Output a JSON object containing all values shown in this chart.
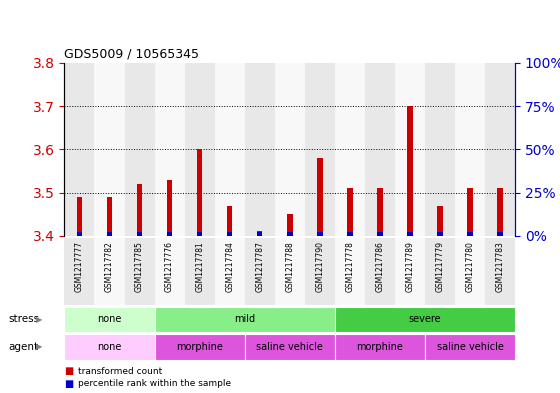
{
  "title": "GDS5009 / 10565345",
  "samples": [
    "GSM1217777",
    "GSM1217782",
    "GSM1217785",
    "GSM1217776",
    "GSM1217781",
    "GSM1217784",
    "GSM1217787",
    "GSM1217788",
    "GSM1217790",
    "GSM1217778",
    "GSM1217786",
    "GSM1217789",
    "GSM1217779",
    "GSM1217780",
    "GSM1217783"
  ],
  "transformed_counts": [
    3.49,
    3.49,
    3.52,
    3.53,
    3.6,
    3.47,
    3.41,
    3.45,
    3.58,
    3.51,
    3.51,
    3.7,
    3.47,
    3.51,
    3.51
  ],
  "baseline": 3.4,
  "percentile_values": [
    0.01,
    0.01,
    0.01,
    0.01,
    0.01,
    0.01,
    0.01,
    0.01,
    0.01,
    0.01,
    0.01,
    0.01,
    0.01,
    0.01,
    0.01
  ],
  "ylim": [
    3.4,
    3.8
  ],
  "y2lim": [
    0,
    100
  ],
  "yticks": [
    3.4,
    3.5,
    3.6,
    3.7,
    3.8
  ],
  "y2ticks": [
    0,
    25,
    50,
    75,
    100
  ],
  "y2ticklabels": [
    "0%",
    "25%",
    "50%",
    "75%",
    "100%"
  ],
  "bar_color": "#cc0000",
  "percentile_color": "#0000cc",
  "bar_width": 0.18,
  "stress_groups": [
    {
      "label": "none",
      "start": 0,
      "end": 3,
      "color": "#ccffcc"
    },
    {
      "label": "mild",
      "start": 3,
      "end": 9,
      "color": "#88ee88"
    },
    {
      "label": "severe",
      "start": 9,
      "end": 15,
      "color": "#44cc44"
    }
  ],
  "agent_groups": [
    {
      "label": "none",
      "start": 0,
      "end": 3,
      "color": "#ffccff"
    },
    {
      "label": "morphine",
      "start": 3,
      "end": 6,
      "color": "#dd55dd"
    },
    {
      "label": "saline vehicle",
      "start": 6,
      "end": 9,
      "color": "#dd55dd"
    },
    {
      "label": "morphine",
      "start": 9,
      "end": 12,
      "color": "#dd55dd"
    },
    {
      "label": "saline vehicle",
      "start": 12,
      "end": 15,
      "color": "#dd55dd"
    }
  ],
  "col_bg_even": "#e8e8e8",
  "col_bg_odd": "#f8f8f8",
  "bg_color": "#ffffff",
  "left_axis_color": "#cc0000",
  "right_axis_color": "#0000cc"
}
